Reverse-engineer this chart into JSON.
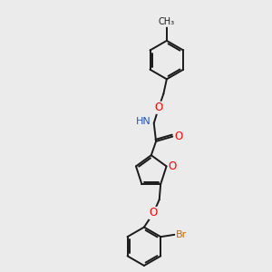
{
  "background_color": "#ebebeb",
  "bond_color": "#1a1a1a",
  "O_color": "#ff0000",
  "N_color": "#2255bb",
  "Br_color": "#cc6600",
  "font_size": 7.5,
  "line_width": 1.4,
  "dbo": 0.07,
  "figsize": [
    3.0,
    3.0
  ],
  "dpi": 100,
  "xlim": [
    0,
    10
  ],
  "ylim": [
    0,
    10
  ]
}
